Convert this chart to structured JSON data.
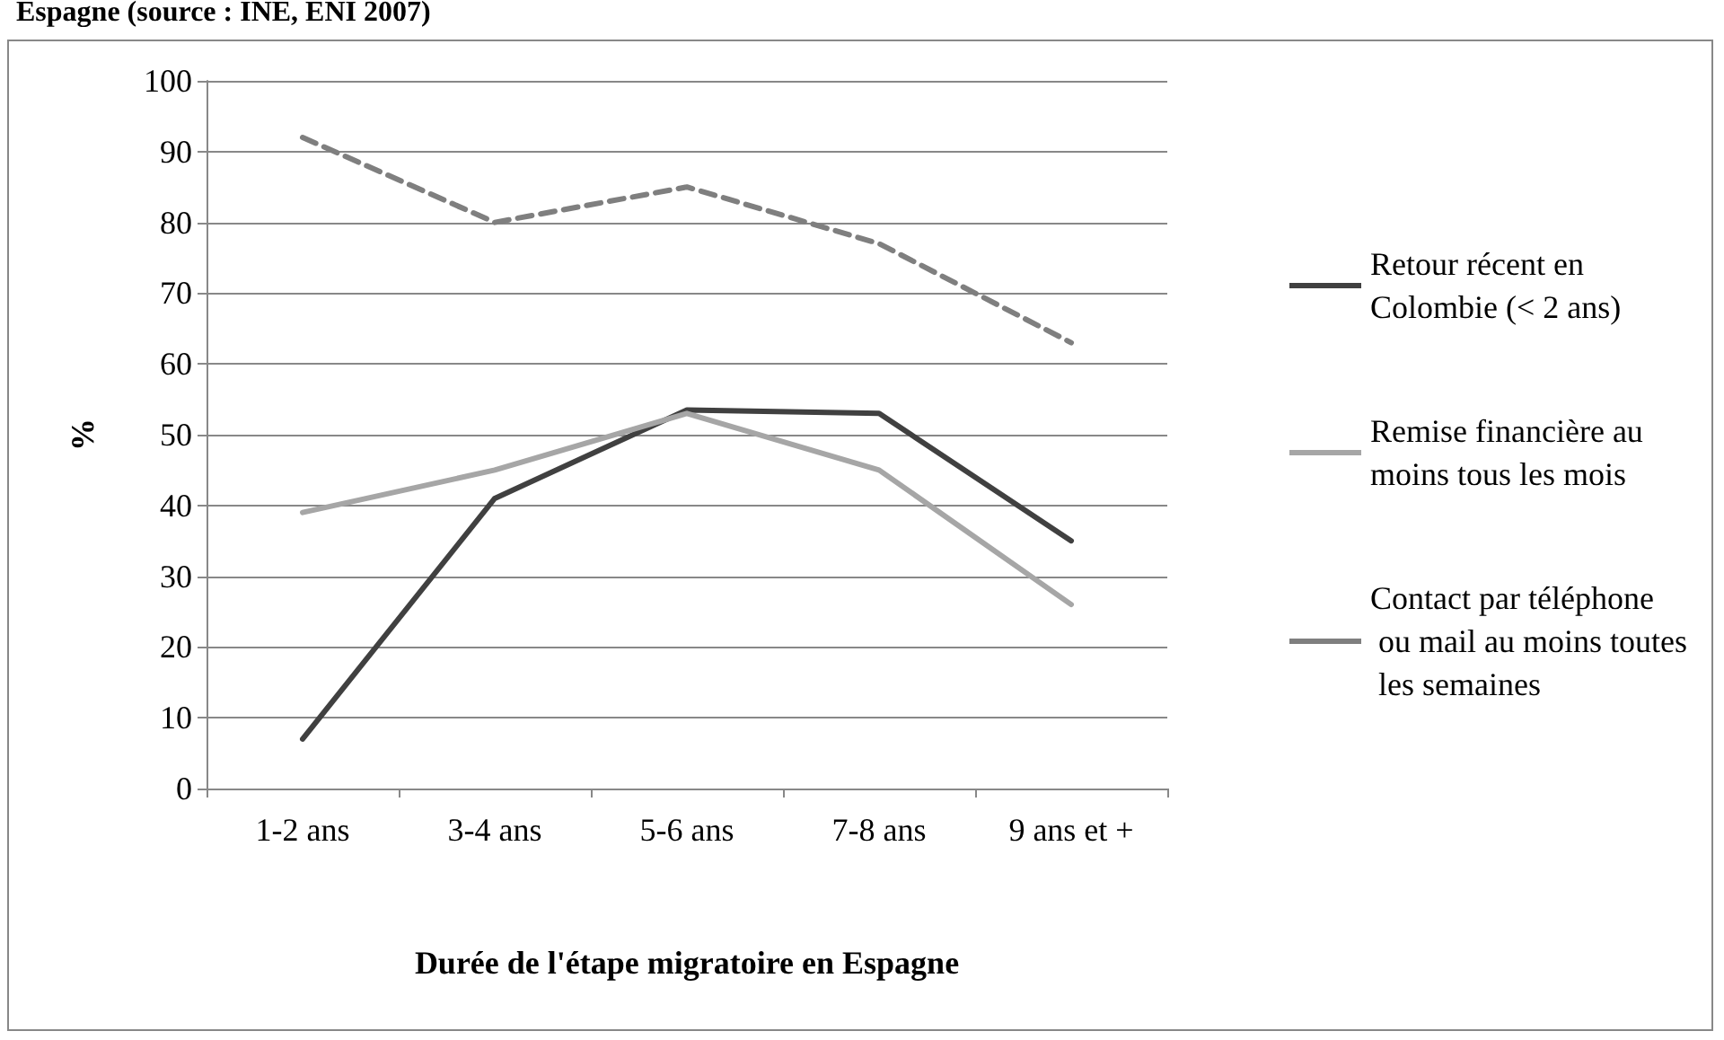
{
  "chart_data": {
    "type": "line",
    "title": "Espagne (source : INE, ENI 2007)",
    "xlabel": "Durée de l'étape migratoire en Espagne",
    "ylabel": "%",
    "categories": [
      "1-2 ans",
      "3-4 ans",
      "5-6 ans",
      "7-8 ans",
      "9 ans et +"
    ],
    "series": [
      {
        "name": "Retour récent en Colombie (< 2 ans)",
        "color": "#404040",
        "line_style": "solid",
        "values": [
          7,
          41,
          53.5,
          53,
          35
        ]
      },
      {
        "name": "Remise financière au moins tous les mois",
        "color": "#a6a6a6",
        "line_style": "solid",
        "values": [
          39,
          45,
          53,
          45,
          26
        ]
      },
      {
        "name": "Contact par téléphone ou mail au moins toutes les semaines",
        "color": "#7f7f7f",
        "line_style": "dashed",
        "values": [
          92,
          80,
          85,
          77,
          63
        ]
      }
    ],
    "ylim": [
      0,
      100
    ],
    "yticks": [
      0,
      10,
      20,
      30,
      40,
      50,
      60,
      70,
      80,
      90,
      100
    ],
    "grid": "y",
    "legend": "right",
    "marker": "none"
  }
}
